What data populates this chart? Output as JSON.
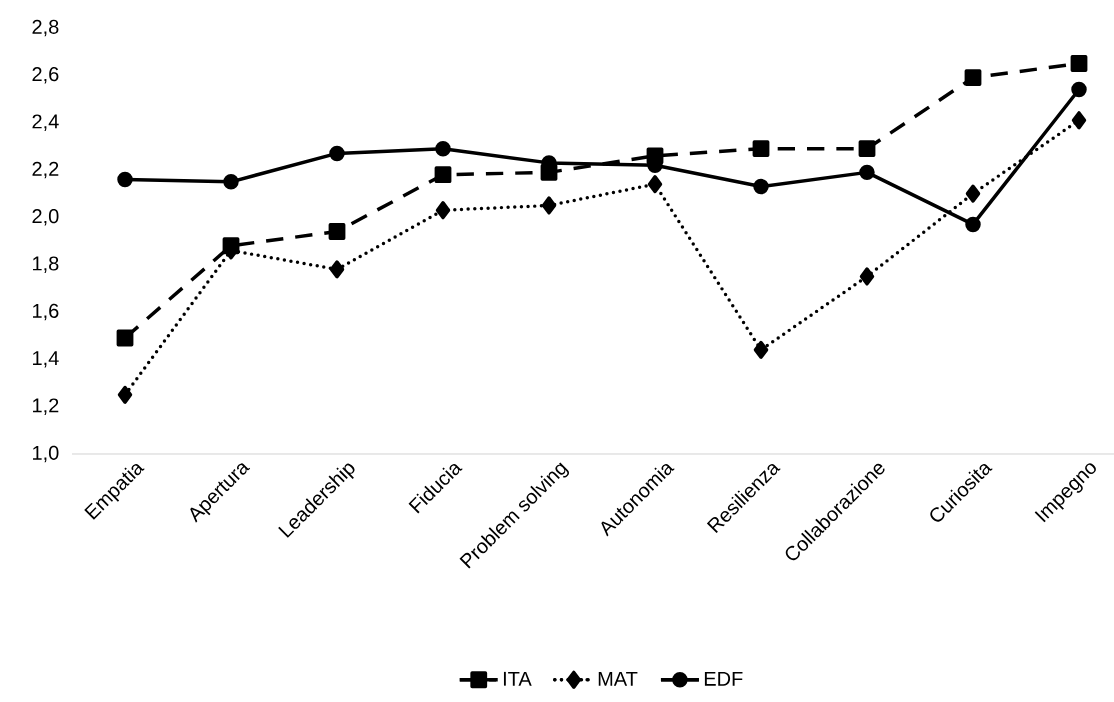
{
  "chart_data": {
    "type": "line",
    "categories": [
      "Empatia",
      "Apertura",
      "Leadership",
      "Fiducia",
      "Problem solving",
      "Autonomia",
      "Resilienza",
      "Collaborazione",
      "Curiosita",
      "Impegno"
    ],
    "series": [
      {
        "name": "ITA",
        "color": "#000000",
        "marker": "square",
        "line_style": "dashed",
        "values": [
          1.49,
          1.88,
          1.94,
          2.18,
          2.19,
          2.26,
          2.29,
          2.29,
          2.59,
          2.65
        ]
      },
      {
        "name": "MAT",
        "color": "#000000",
        "marker": "diamond",
        "line_style": "dotted",
        "values": [
          1.25,
          1.86,
          1.78,
          2.03,
          2.05,
          2.14,
          1.44,
          1.75,
          2.1,
          2.41
        ]
      },
      {
        "name": "EDF",
        "color": "#000000",
        "marker": "circle",
        "line_style": "solid",
        "values": [
          2.16,
          2.15,
          2.27,
          2.29,
          2.23,
          2.22,
          2.13,
          2.19,
          1.97,
          2.54
        ]
      }
    ],
    "ylim": [
      1.0,
      2.8
    ],
    "yticks": [
      {
        "value": 1.0,
        "label": "1,0"
      },
      {
        "value": 1.2,
        "label": "1,2"
      },
      {
        "value": 1.4,
        "label": "1,4"
      },
      {
        "value": 1.6,
        "label": "1,6"
      },
      {
        "value": 1.8,
        "label": "1,8"
      },
      {
        "value": 2.0,
        "label": "2,0"
      },
      {
        "value": 2.2,
        "label": "2,2"
      },
      {
        "value": 2.4,
        "label": "2,4"
      },
      {
        "value": 2.6,
        "label": "2,6"
      },
      {
        "value": 2.8,
        "label": "2,8"
      }
    ],
    "legend": "bottom"
  }
}
